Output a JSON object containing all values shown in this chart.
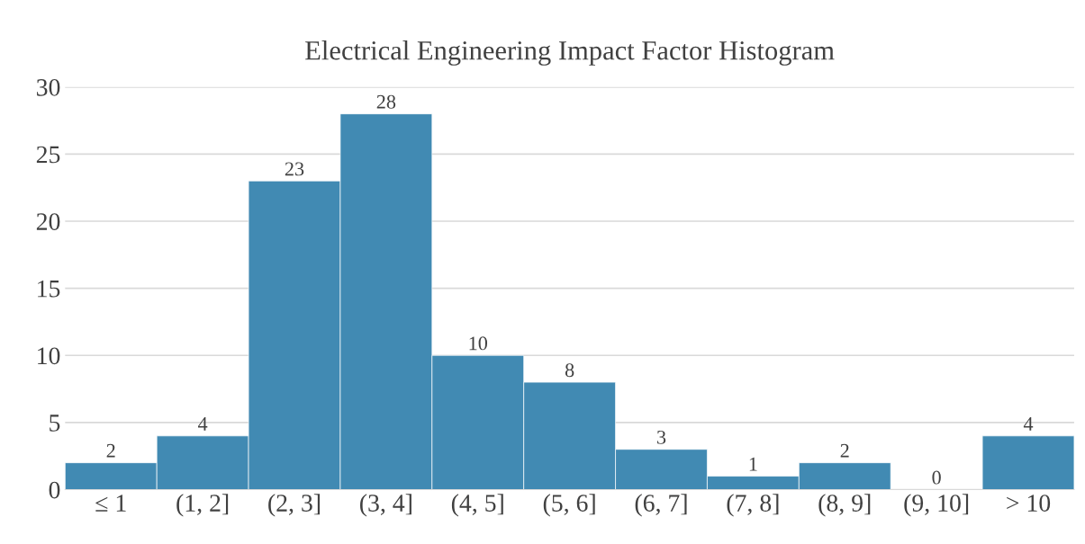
{
  "chart_data": {
    "type": "bar",
    "title": "Electrical Engineering Impact Factor Histogram",
    "categories": [
      "≤ 1",
      "(1, 2]",
      "(2, 3]",
      "(3, 4]",
      "(4, 5]",
      "(5, 6]",
      "(6, 7]",
      "(7, 8]",
      "(8, 9]",
      "(9, 10]",
      "> 10"
    ],
    "values": [
      2,
      4,
      23,
      28,
      10,
      8,
      3,
      1,
      2,
      0,
      4
    ],
    "color": "#418ab3",
    "ylim": [
      0,
      30
    ],
    "yticks": [
      0,
      5,
      10,
      15,
      20,
      25,
      30
    ],
    "grid": "y",
    "data_labels": true
  }
}
